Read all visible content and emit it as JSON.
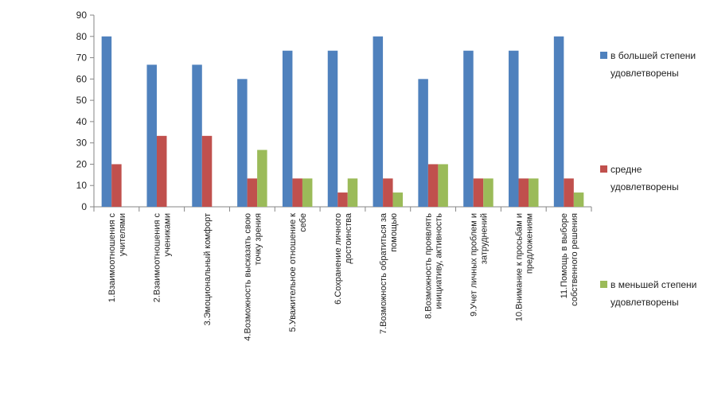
{
  "chart_data": {
    "type": "bar",
    "title": "",
    "xlabel": "",
    "ylabel": "",
    "ylim": [
      0,
      90
    ],
    "yticks": [
      0,
      10,
      20,
      30,
      40,
      50,
      60,
      70,
      80,
      90
    ],
    "grid": false,
    "legend_position": "right",
    "categories": [
      [
        "1.Взаимоотношения с",
        "учителями"
      ],
      [
        "2.Взаимоотношения с",
        "учениками"
      ],
      [
        "3.Эмоциональный комфорт"
      ],
      [
        "4.Возможность высказать свою",
        "точку зрения"
      ],
      [
        "5.Уважительное отношение к",
        "себе"
      ],
      [
        "6.Сохранение личного",
        "достоинства"
      ],
      [
        "7.Возможность обратиться за",
        "помощью"
      ],
      [
        "8.Возможность проявлять",
        "инициативу, активность"
      ],
      [
        "9.Учет личных проблем и",
        "затруднений"
      ],
      [
        "10.Внимание к просьбам и",
        "предложениям"
      ],
      [
        "11.Помощь в выборе",
        "собственного решения"
      ]
    ],
    "series": [
      {
        "name": [
          "в большей степени",
          "удовлетворены"
        ],
        "color": "#4F81BD",
        "values": [
          80,
          66.7,
          66.7,
          60,
          73.3,
          73.3,
          80,
          60,
          73.3,
          73.3,
          80
        ]
      },
      {
        "name": [
          "средне",
          "удовлетворены"
        ],
        "color": "#C0504D",
        "values": [
          20,
          33.3,
          33.3,
          13.3,
          13.3,
          6.7,
          13.3,
          20,
          13.3,
          13.3,
          13.3
        ]
      },
      {
        "name": [
          "в меньшей степени",
          "удовлетворены"
        ],
        "color": "#9BBB59",
        "values": [
          0,
          0,
          0,
          26.7,
          13.3,
          13.3,
          6.7,
          20,
          13.3,
          13.3,
          6.7
        ]
      }
    ]
  }
}
